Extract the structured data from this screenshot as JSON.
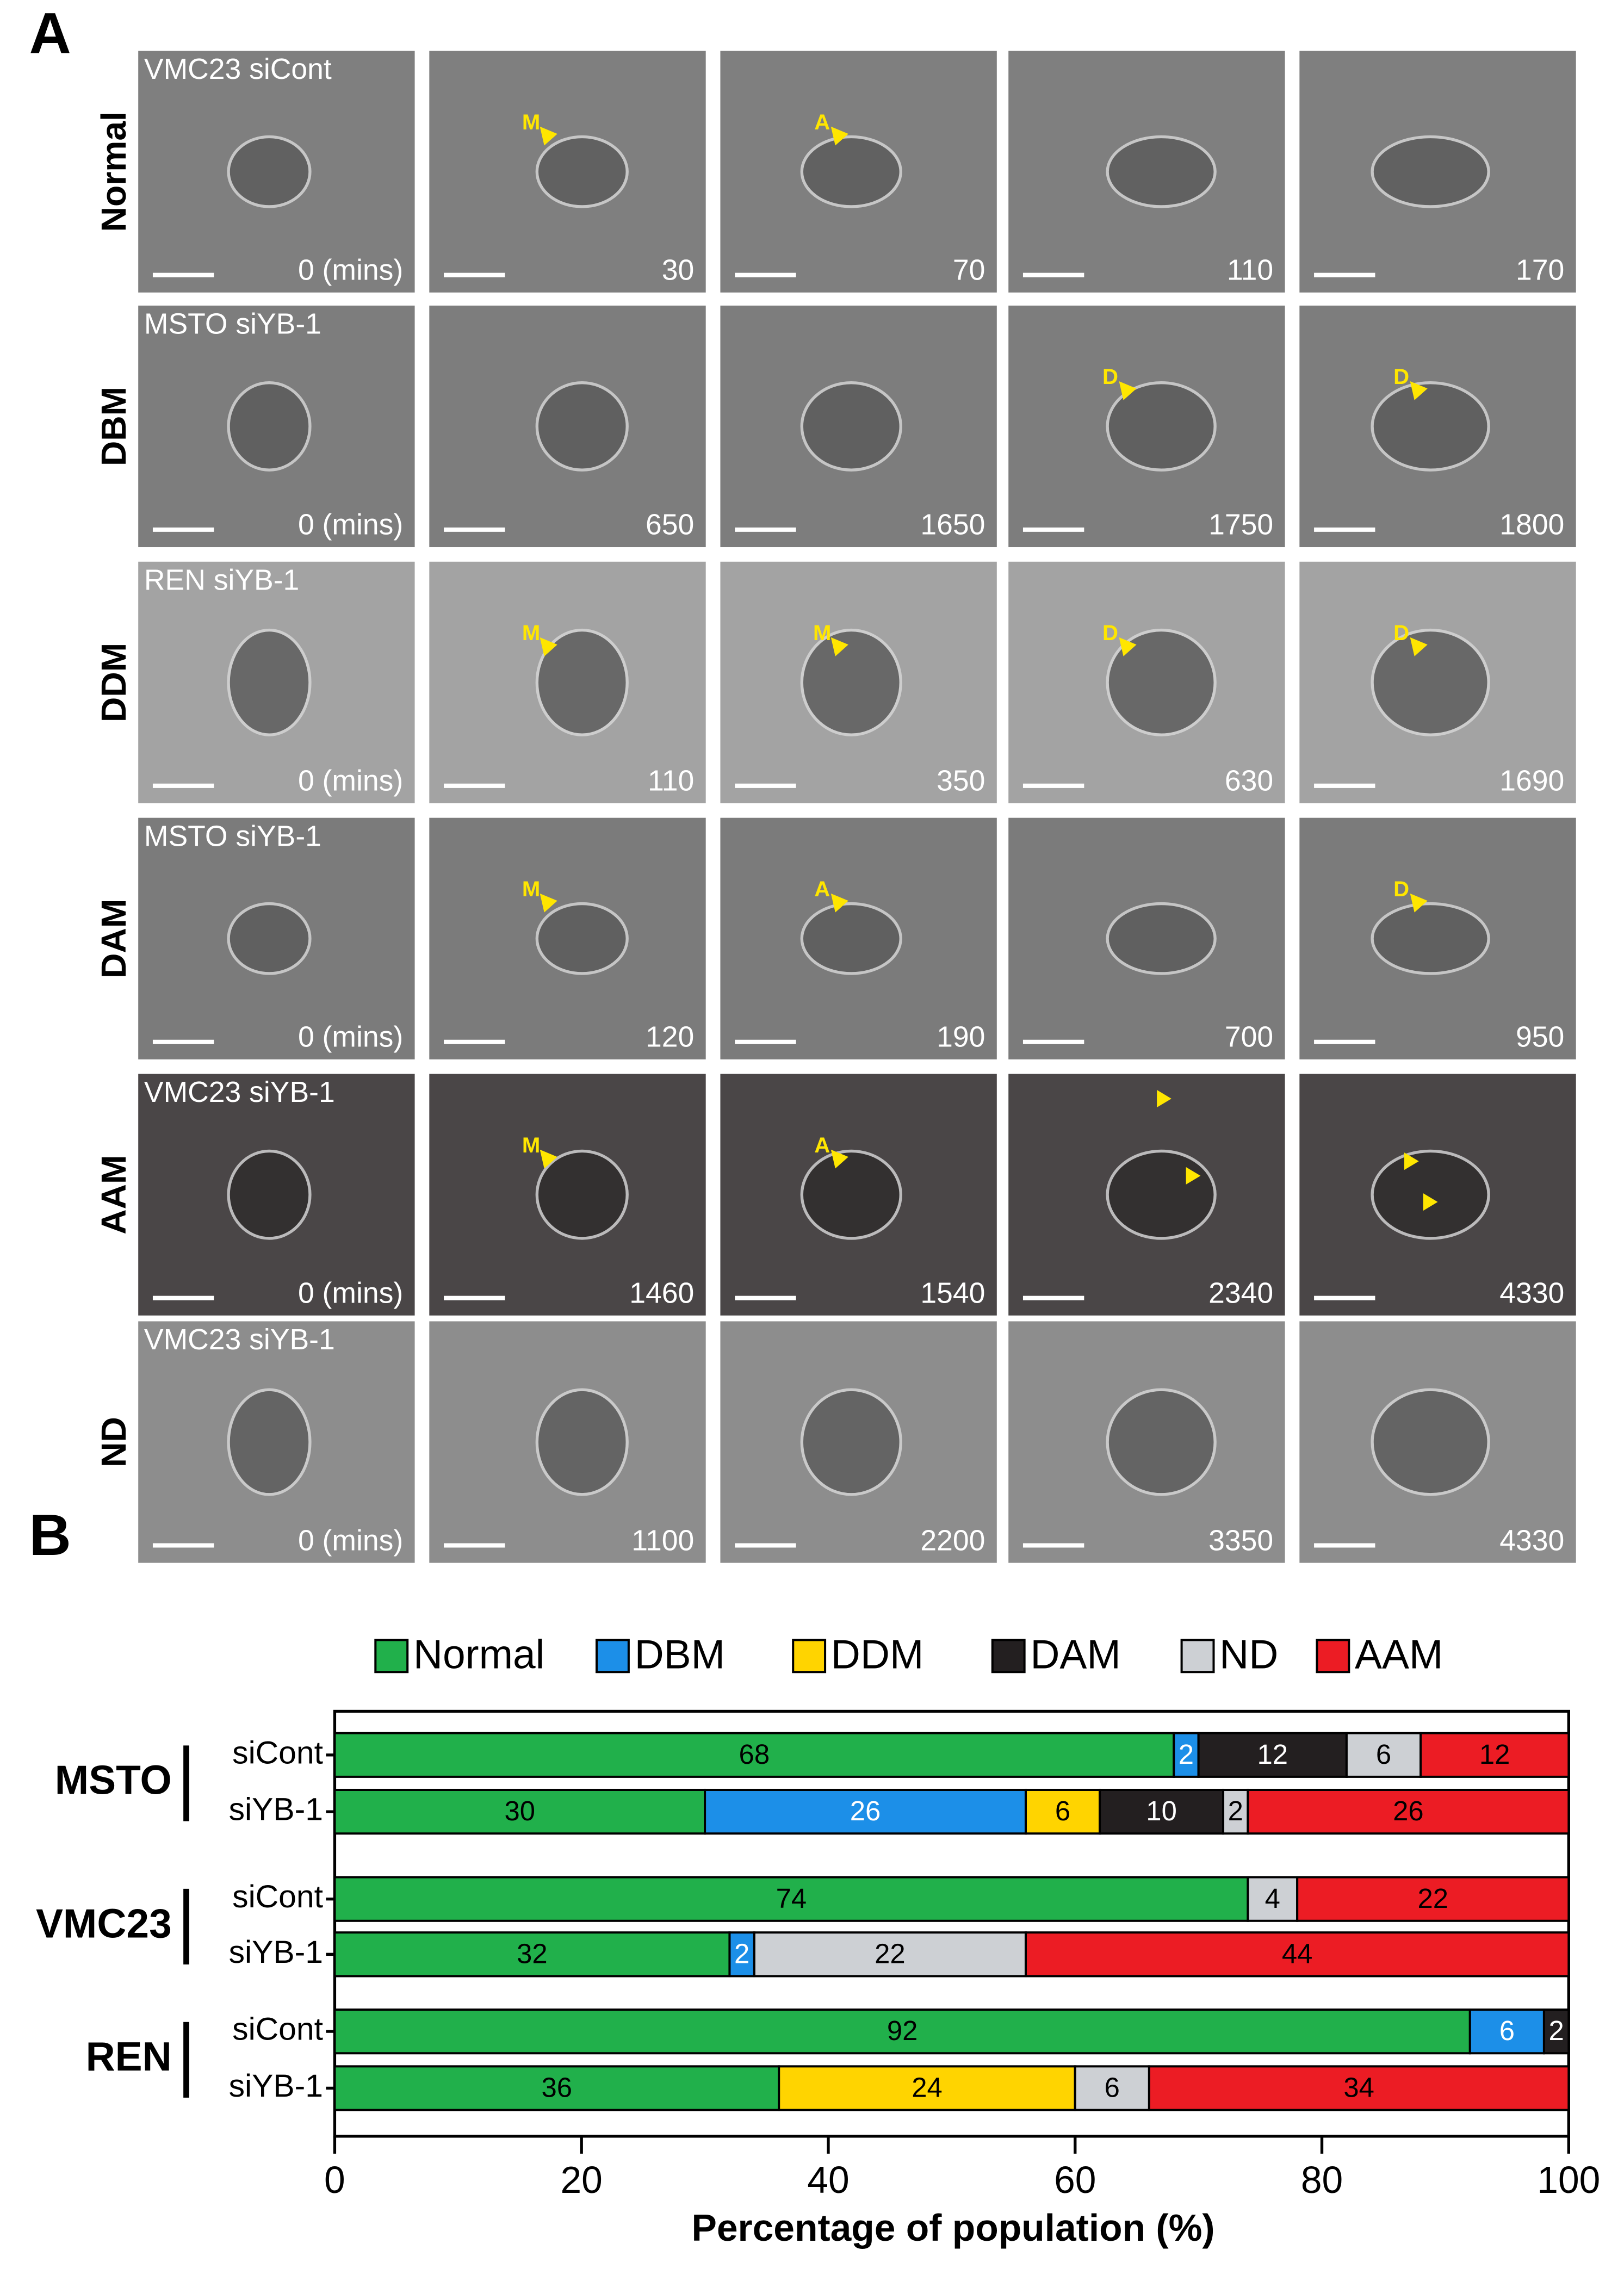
{
  "panel_a": {
    "label": "A",
    "rows": [
      {
        "label": "Normal",
        "caption": "VMC23 siCont",
        "times": [
          "0 (mins)",
          "30",
          "70",
          "110",
          "170"
        ],
        "markers": [
          null,
          "M",
          "A",
          null,
          null
        ]
      },
      {
        "label": "DBM",
        "caption": "MSTO siYB-1",
        "times": [
          "0 (mins)",
          "650",
          "1650",
          "1750",
          "1800"
        ],
        "markers": [
          null,
          null,
          null,
          "D",
          "D"
        ]
      },
      {
        "label": "DDM",
        "caption": "REN siYB-1",
        "times": [
          "0 (mins)",
          "110",
          "350",
          "630",
          "1690"
        ],
        "markers": [
          null,
          "M",
          "M",
          "D",
          "D"
        ]
      },
      {
        "label": "DAM",
        "caption": "MSTO siYB-1",
        "times": [
          "0 (mins)",
          "120",
          "190",
          "700",
          "950"
        ],
        "markers": [
          null,
          "M",
          "A",
          null,
          "D"
        ]
      },
      {
        "label": "AAM",
        "caption": "VMC23 siYB-1",
        "times": [
          "0 (mins)",
          "1460",
          "1540",
          "2340",
          "4330"
        ],
        "markers": [
          null,
          "M",
          "A",
          null,
          null
        ]
      },
      {
        "label": "ND",
        "caption": "VMC23 siYB-1",
        "times": [
          "0 (mins)",
          "1100",
          "2200",
          "3350",
          "4330"
        ],
        "markers": [
          null,
          null,
          null,
          null,
          null
        ]
      }
    ]
  },
  "chart_data": {
    "type": "stacked_bar_horizontal",
    "panel_label": "B",
    "x_label": "Percentage of population (%)",
    "groups": [
      "MSTO",
      "VMC23",
      "REN"
    ],
    "categories": [
      "siCont",
      "siYB-1",
      "siCont",
      "siYB-1",
      "siCont",
      "siYB-1"
    ],
    "series": [
      {
        "name": "Normal",
        "color": "#21b04b",
        "values": [
          68,
          30,
          74,
          32,
          92,
          36
        ]
      },
      {
        "name": "DBM",
        "color": "#1c8fe8",
        "values": [
          2,
          26,
          0,
          2,
          6,
          0
        ]
      },
      {
        "name": "DDM",
        "color": "#ffd400",
        "values": [
          0,
          6,
          0,
          0,
          0,
          24
        ]
      },
      {
        "name": "DAM",
        "color": "#231f20",
        "values": [
          12,
          10,
          0,
          0,
          2,
          0
        ]
      },
      {
        "name": "ND",
        "color": "#cdd0d4",
        "values": [
          6,
          2,
          4,
          22,
          0,
          6
        ]
      },
      {
        "name": "AAM",
        "color": "#ec1c24",
        "values": [
          12,
          26,
          22,
          44,
          0,
          34
        ]
      }
    ],
    "xlim": [
      0,
      100
    ],
    "xticks": [
      0,
      20,
      40,
      60,
      80,
      100
    ]
  }
}
